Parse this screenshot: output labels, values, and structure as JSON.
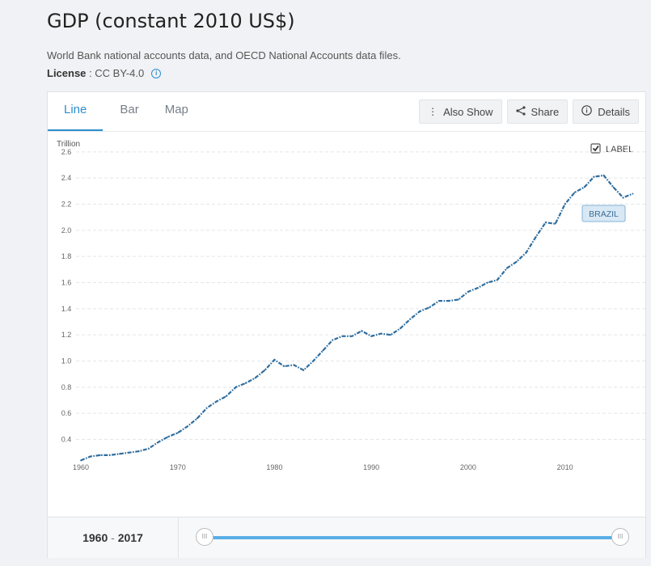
{
  "page": {
    "title": "GDP (constant 2010 US$)",
    "source": "World Bank national accounts data, and OECD National Accounts data files.",
    "license_label": "License",
    "license_sep": " : ",
    "license_value": "CC BY-4.0",
    "info_icon": "i"
  },
  "tabs": [
    {
      "label": "Line",
      "active": true
    },
    {
      "label": "Bar",
      "active": false
    },
    {
      "label": "Map",
      "active": false
    }
  ],
  "toolbar": {
    "also_show": "Also Show",
    "share": "Share",
    "details": "Details"
  },
  "footer": {
    "range_start": "1960",
    "range_sep": " - ",
    "range_end": "2017"
  },
  "chart_data": {
    "type": "line",
    "unit_label": "Trillion",
    "label_checkbox": "LABEL",
    "label_checked": true,
    "series_label": "BRAZIL",
    "color": "#2e6d9e",
    "ylim": [
      0.23,
      2.63
    ],
    "xlim": [
      1959.5,
      2018.3
    ],
    "y_ticks": [
      0.4,
      0.6,
      0.8,
      1.0,
      1.2,
      1.4,
      1.6,
      1.8,
      2.0,
      2.2,
      2.4,
      2.6
    ],
    "y_tick_labels": [
      "0.4",
      "0.6",
      "0.8",
      "1.0",
      "1.2",
      "1.4",
      "1.6",
      "1.8",
      "2.0",
      "2.2",
      "2.4",
      "2.6"
    ],
    "x_ticks": [
      1960,
      1970,
      1980,
      1990,
      2000,
      2010
    ],
    "x_tick_labels": [
      "1960",
      "1970",
      "1980",
      "1990",
      "2000",
      "2010"
    ],
    "x": [
      1960,
      1961,
      1962,
      1963,
      1964,
      1965,
      1966,
      1967,
      1968,
      1969,
      1970,
      1971,
      1972,
      1973,
      1974,
      1975,
      1976,
      1977,
      1978,
      1979,
      1980,
      1981,
      1982,
      1983,
      1984,
      1985,
      1986,
      1987,
      1988,
      1989,
      1990,
      1991,
      1992,
      1993,
      1994,
      1995,
      1996,
      1997,
      1998,
      1999,
      2000,
      2001,
      2002,
      2003,
      2004,
      2005,
      2006,
      2007,
      2008,
      2009,
      2010,
      2011,
      2012,
      2013,
      2014,
      2015,
      2016,
      2017
    ],
    "y": [
      0.24,
      0.27,
      0.28,
      0.28,
      0.29,
      0.3,
      0.31,
      0.33,
      0.38,
      0.42,
      0.45,
      0.5,
      0.56,
      0.64,
      0.69,
      0.73,
      0.8,
      0.83,
      0.87,
      0.93,
      1.01,
      0.96,
      0.97,
      0.93,
      1.0,
      1.08,
      1.16,
      1.19,
      1.19,
      1.23,
      1.19,
      1.21,
      1.2,
      1.25,
      1.32,
      1.38,
      1.41,
      1.46,
      1.46,
      1.47,
      1.53,
      1.56,
      1.6,
      1.62,
      1.71,
      1.76,
      1.83,
      1.95,
      2.06,
      2.05,
      2.2,
      2.29,
      2.33,
      2.41,
      2.42,
      2.33,
      2.25,
      2.28
    ]
  }
}
